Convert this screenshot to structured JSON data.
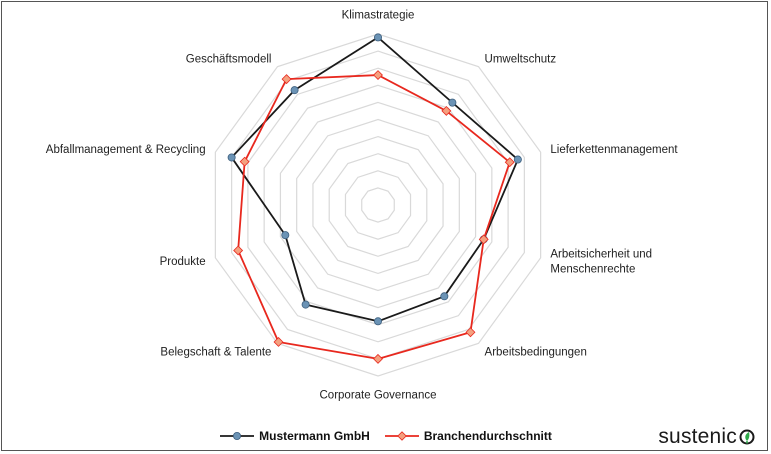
{
  "chart_data": {
    "type": "radar",
    "categories": [
      "Klimastrategie",
      "Umweltschutz",
      "Lieferkettenmanagement",
      "Arbeitsicherheit und Menschenrechte",
      "Arbeitsbedingungen",
      "Corporate Governance",
      "Belegschaft & Talente",
      "Produkte",
      "Abfallmanagement & Recycling",
      "Geschäftsmodell"
    ],
    "label_lines": [
      [
        "Klimastrategie"
      ],
      [
        "Umweltschutz"
      ],
      [
        "Lieferkettenmanagement"
      ],
      [
        "Arbeitsicherheit und",
        "Menschenrechte"
      ],
      [
        "Arbeitsbedingungen"
      ],
      [
        "Corporate Governance"
      ],
      [
        "Belegschaft & Talente"
      ],
      [
        "Produkte"
      ],
      [
        "Abfallmanagement & Recycling"
      ],
      [
        "Geschäftsmodell"
      ]
    ],
    "rmax": 10,
    "grid_levels": 10,
    "grid": true,
    "legend_position": "bottom",
    "series": [
      {
        "name": "Mustermann GmbH",
        "color": "#1a1a1a",
        "marker_color": "#6b93b5",
        "marker": "circle",
        "values": [
          9.8,
          7.4,
          8.6,
          6.5,
          6.6,
          6.8,
          7.2,
          5.7,
          9.0,
          8.3
        ]
      },
      {
        "name": "Branchendurchschnitt",
        "color": "#e8281e",
        "marker_color": "#f4a07f",
        "marker": "diamond",
        "values": [
          7.6,
          6.8,
          8.1,
          6.5,
          9.2,
          9.0,
          9.9,
          8.6,
          8.2,
          9.1
        ]
      }
    ]
  },
  "legend": {
    "items": [
      {
        "label": "Mustermann GmbH"
      },
      {
        "label": "Branchendurchschnitt"
      }
    ]
  },
  "logo": {
    "text": "sustenic",
    "accent_color": "#2eaa4a"
  }
}
